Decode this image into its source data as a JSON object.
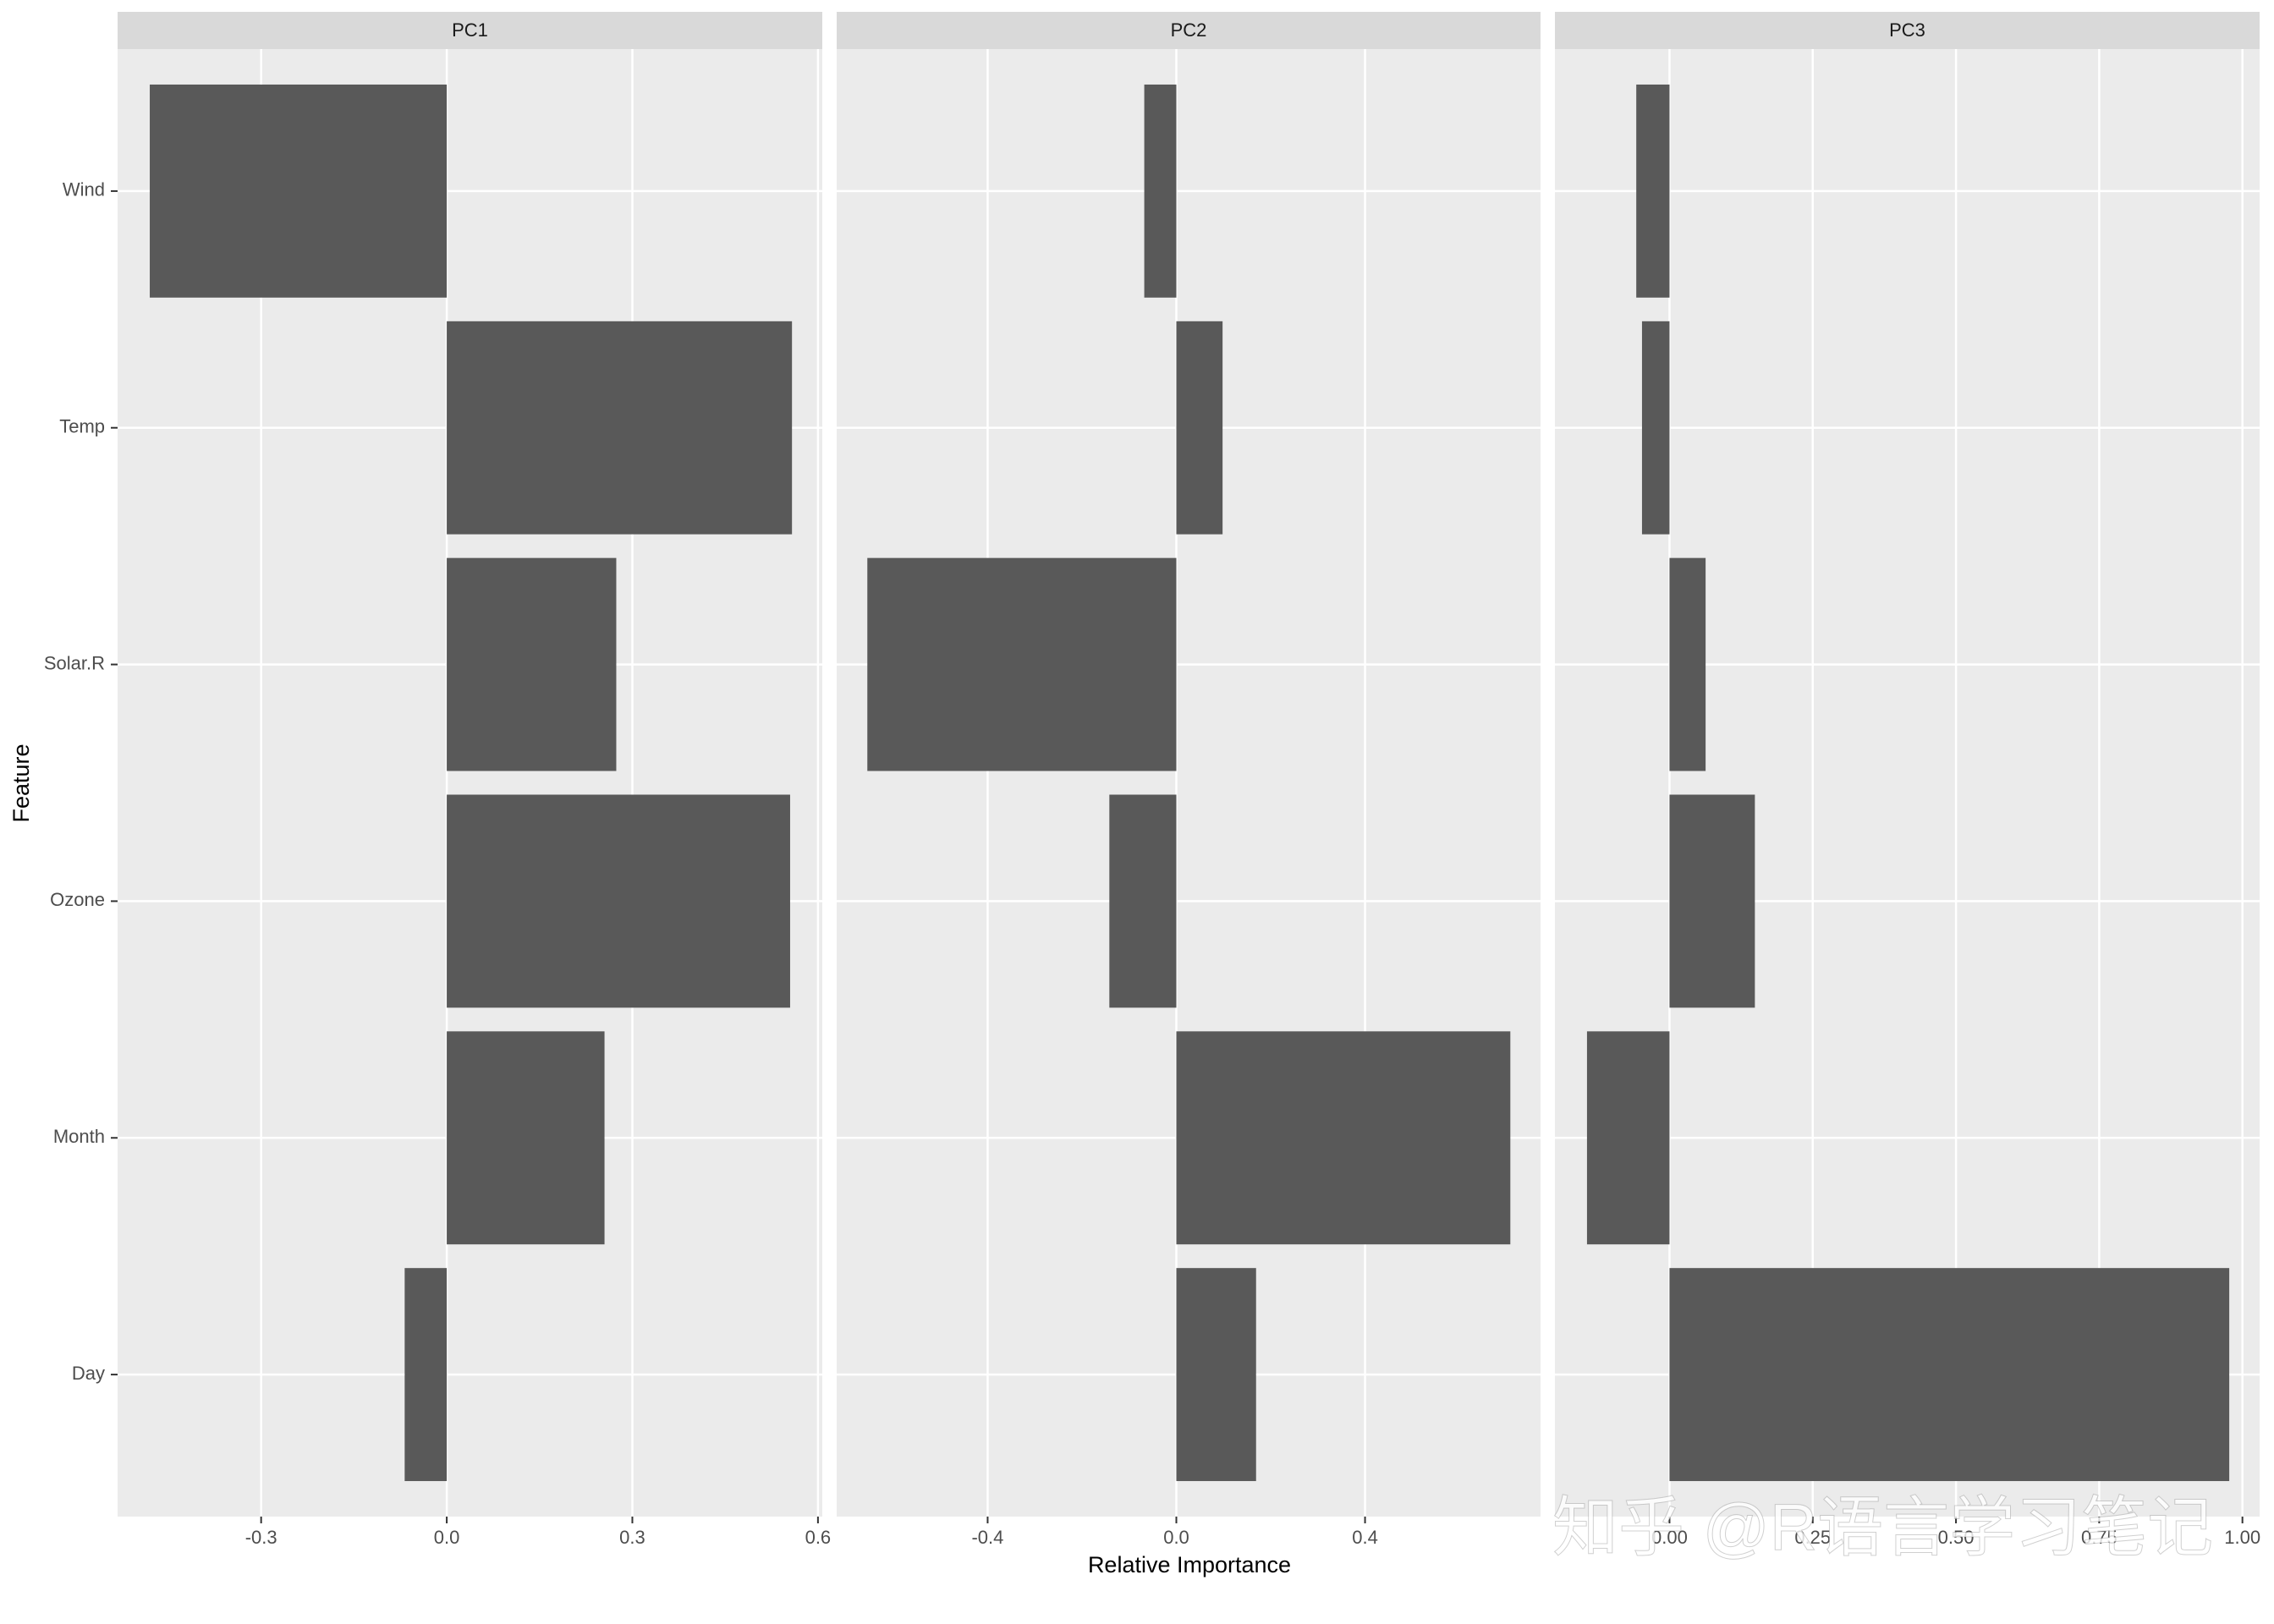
{
  "chart_data": {
    "type": "bar",
    "orientation": "horizontal",
    "color": "#595959",
    "grid": true,
    "x_label": "Relative Importance",
    "y_label": "Feature",
    "categories": [
      "Wind",
      "Temp",
      "Solar.R",
      "Ozone",
      "Month",
      "Day"
    ],
    "facets": [
      {
        "title": "PC1",
        "values": [
          -0.48,
          0.558,
          0.274,
          0.555,
          0.255,
          -0.068
        ],
        "xlim": [
          -0.532,
          0.607
        ],
        "xticks": [
          -0.3,
          {
            "value": 0,
            "label": "0.0"
          },
          0.3,
          0.6
        ]
      },
      {
        "title": "PC2",
        "values": [
          -0.068,
          0.098,
          -0.655,
          -0.142,
          0.708,
          0.169
        ],
        "xlim": [
          -0.72,
          0.772
        ],
        "xticks": [
          -0.4,
          {
            "value": 0,
            "label": "0.0"
          },
          0.4
        ]
      },
      {
        "title": "PC3",
        "values": [
          -0.058,
          -0.048,
          0.063,
          0.149,
          -0.144,
          0.977
        ],
        "xlim": [
          -0.2,
          1.03
        ],
        "xticks": [
          {
            "value": 0,
            "label": "0.00"
          },
          0.25,
          {
            "value": 0.5,
            "label": "0.50"
          },
          0.75,
          {
            "value": 1,
            "label": "1.00"
          }
        ]
      }
    ],
    "watermark": "知乎 @R语言学习笔记"
  }
}
